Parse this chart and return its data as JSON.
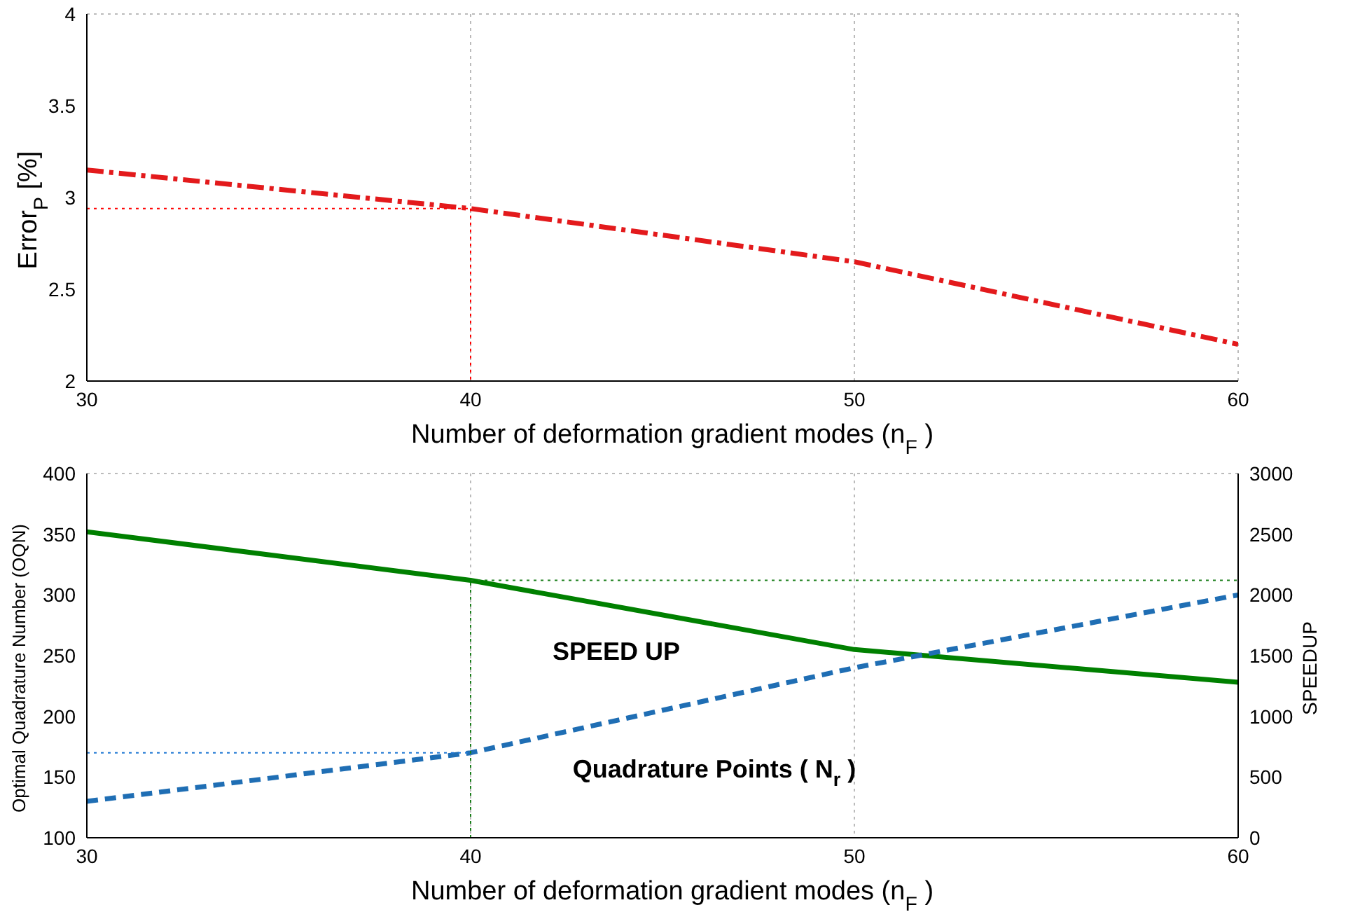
{
  "chart_data": [
    {
      "type": "line",
      "xlabel": "Number of deformation gradient modes (n$_{F}$)",
      "ylabel": "Error$_{P}$ [%]",
      "xlim": [
        30,
        60
      ],
      "xticks": [
        30,
        40,
        50,
        60
      ],
      "ylim": [
        2,
        4
      ],
      "yticks": [
        2,
        2.5,
        3,
        3.5,
        4
      ],
      "grid": true,
      "series": [
        {
          "x": [
            30,
            40,
            50,
            60
          ],
          "values": [
            3.15,
            2.94,
            2.65,
            2.2
          ],
          "color": "#e31a1c",
          "line_style": "dashdot"
        },
        {
          "x": [
            30,
            40
          ],
          "values": [
            2.94,
            2.94
          ],
          "color": "#ff0000",
          "line_style": "dotted"
        },
        {
          "x": [
            40,
            40
          ],
          "values": [
            2.94,
            2
          ],
          "color": "#ff0000",
          "line_style": "dotted"
        }
      ]
    },
    {
      "type": "line",
      "xlabel": "Number of deformation gradient modes (n$_{F}$)",
      "ylabel": "Optimal Quadrature Number (OQN)",
      "y2label": "SPEEDUP",
      "xlim": [
        30,
        60
      ],
      "xticks": [
        30,
        40,
        50,
        60
      ],
      "ylim": [
        100,
        400
      ],
      "yticks": [
        100,
        150,
        200,
        250,
        300,
        350,
        400
      ],
      "y2lim": [
        0,
        3000
      ],
      "y2ticks": [
        0,
        500,
        1000,
        1500,
        2000,
        2500,
        3000
      ],
      "grid": true,
      "annotations": [
        "SPEED UP",
        "Quadrature Points ( N$_{r}$ )"
      ],
      "series": [
        {
          "x": [
            30,
            40,
            50,
            60
          ],
          "values": [
            2520,
            2120,
            1550,
            1280
          ],
          "color": "#008000",
          "line_style": "solid",
          "axis": "y2"
        },
        {
          "x": [
            30,
            40,
            50,
            60
          ],
          "values": [
            130,
            170,
            240,
            300
          ],
          "color": "#1f6eb4",
          "line_style": "dashed"
        },
        {
          "x": [
            30,
            40
          ],
          "values": [
            170,
            170
          ],
          "color": "#1f78d4",
          "line_style": "dotted"
        },
        {
          "x": [
            40,
            40
          ],
          "values": [
            0,
            2120
          ],
          "color": "#1a7f1a",
          "line_style": "dotted",
          "axis": "y2"
        },
        {
          "x": [
            40,
            60
          ],
          "values": [
            2120,
            2120
          ],
          "color": "#1a7f1a",
          "line_style": "dotted",
          "axis": "y2"
        }
      ]
    }
  ]
}
